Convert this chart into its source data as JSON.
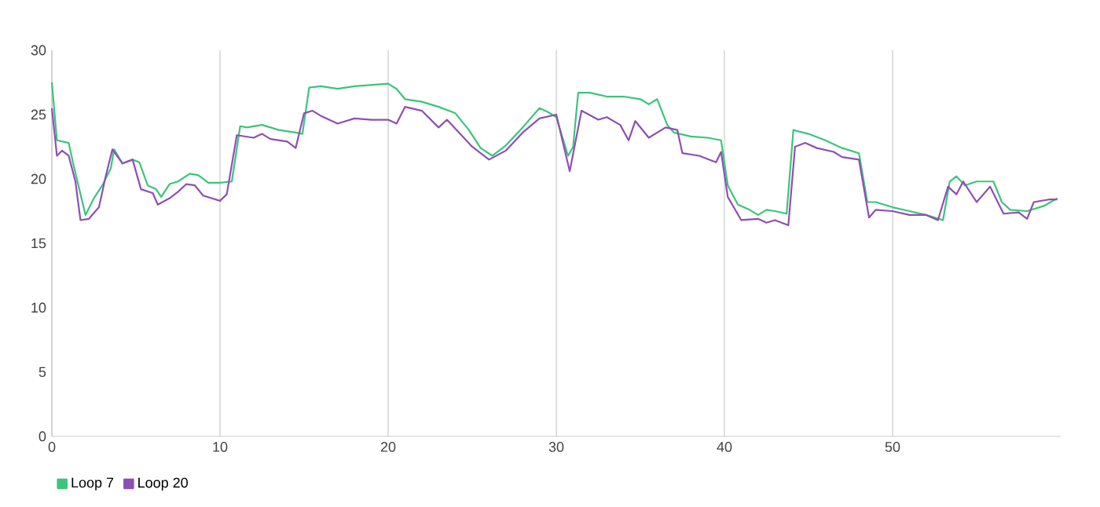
{
  "chart_data": {
    "type": "line",
    "xlim": [
      0,
      60
    ],
    "ylim": [
      0,
      30
    ],
    "xticks": [
      0,
      10,
      20,
      30,
      40,
      50
    ],
    "yticks": [
      0,
      5,
      10,
      15,
      20,
      25,
      30
    ],
    "grid": "x",
    "legend": "bottom left",
    "marker": "none",
    "line_style": "solid",
    "series": [
      {
        "name": "Loop 7",
        "color": "#3cc47c",
        "x": [
          0,
          0.3,
          1,
          1.3,
          2,
          2.5,
          3,
          3.5,
          3.7,
          4.2,
          4.8,
          5.2,
          5.7,
          6.2,
          6.5,
          7,
          7.5,
          8.2,
          8.7,
          9.3,
          10,
          10.7,
          11.2,
          11.6,
          12.5,
          13.5,
          14.5,
          14.9,
          15.3,
          16,
          17,
          18,
          19,
          20,
          20.5,
          21,
          22,
          23,
          24,
          24.8,
          25.5,
          26.2,
          27,
          28,
          29,
          29.5,
          30,
          30.7,
          31,
          31.3,
          32,
          33,
          34,
          35,
          35.5,
          36,
          36.6,
          37,
          38,
          39,
          39.8,
          40.2,
          40.8,
          41.5,
          42,
          42.5,
          43,
          43.7,
          44.1,
          45,
          46,
          47,
          48,
          48.5,
          49,
          50,
          51,
          52,
          53,
          53.4,
          53.8,
          54.3,
          55,
          56,
          56.5,
          57,
          58,
          59,
          59.8
        ],
        "values": [
          27.5,
          23,
          22.8,
          21,
          17.2,
          18.5,
          19.5,
          20.8,
          22.3,
          21.2,
          21.5,
          21.3,
          19.5,
          19.2,
          18.6,
          19.6,
          19.8,
          20.4,
          20.3,
          19.7,
          19.7,
          19.8,
          24.1,
          24,
          24.2,
          23.8,
          23.6,
          23.5,
          27.1,
          27.2,
          27,
          27.2,
          27.3,
          27.4,
          27,
          26.2,
          26,
          25.6,
          25.1,
          23.8,
          22.4,
          21.8,
          22.6,
          24,
          25.5,
          25.2,
          24.8,
          21.8,
          22.5,
          26.7,
          26.7,
          26.4,
          26.4,
          26.2,
          25.8,
          26.2,
          24.2,
          23.6,
          23.3,
          23.2,
          23,
          19.5,
          18,
          17.6,
          17.2,
          17.6,
          17.5,
          17.3,
          23.8,
          23.5,
          23,
          22.4,
          22,
          18.2,
          18.2,
          17.8,
          17.5,
          17.2,
          16.8,
          19.8,
          20.2,
          19.5,
          19.8,
          19.8,
          18.2,
          17.6,
          17.5,
          17.9,
          18.5
        ]
      },
      {
        "name": "Loop 20",
        "color": "#8e4fb3",
        "x": [
          0,
          0.3,
          0.6,
          1,
          1.4,
          1.7,
          2.2,
          2.8,
          3.2,
          3.6,
          4.2,
          4.8,
          5.3,
          6,
          6.3,
          7,
          7.5,
          8,
          8.5,
          9,
          10,
          10.4,
          11,
          12,
          12.5,
          13,
          14,
          14.5,
          15,
          15.5,
          16,
          17,
          18,
          19,
          20,
          20.5,
          21,
          22,
          23,
          23.5,
          24,
          25,
          26,
          27,
          28,
          29,
          30,
          30.8,
          31.5,
          32.5,
          33,
          33.8,
          34.3,
          34.7,
          35.5,
          36.5,
          37.2,
          37.5,
          38.5,
          39.5,
          39.8,
          40.2,
          41,
          42,
          42.5,
          43,
          43.8,
          44.2,
          44.8,
          45.5,
          46.5,
          47,
          48,
          48.6,
          49,
          50,
          51,
          52,
          52.7,
          53.3,
          53.8,
          54.2,
          55,
          55.8,
          56.6,
          57.5,
          58,
          58.4,
          59.3,
          59.8
        ],
        "values": [
          25.5,
          21.8,
          22.2,
          21.8,
          19.8,
          16.8,
          16.9,
          17.8,
          20.2,
          22.3,
          21.2,
          21.5,
          19.2,
          18.9,
          18,
          18.5,
          19,
          19.6,
          19.5,
          18.7,
          18.3,
          18.8,
          23.4,
          23.2,
          23.5,
          23.1,
          22.9,
          22.4,
          25.1,
          25.3,
          24.9,
          24.3,
          24.7,
          24.6,
          24.6,
          24.3,
          25.6,
          25.3,
          24,
          24.6,
          23.9,
          22.5,
          21.5,
          22.2,
          23.6,
          24.7,
          25,
          20.6,
          25.3,
          24.6,
          24.8,
          24.2,
          23,
          24.5,
          23.2,
          24,
          23.8,
          22,
          21.8,
          21.3,
          22.1,
          18.6,
          16.8,
          16.9,
          16.6,
          16.8,
          16.4,
          22.5,
          22.8,
          22.4,
          22.1,
          21.7,
          21.5,
          17,
          17.6,
          17.5,
          17.2,
          17.2,
          16.8,
          19.4,
          18.8,
          19.8,
          18.2,
          19.4,
          17.3,
          17.4,
          16.9,
          18.2,
          18.4,
          18.4
        ]
      }
    ]
  }
}
